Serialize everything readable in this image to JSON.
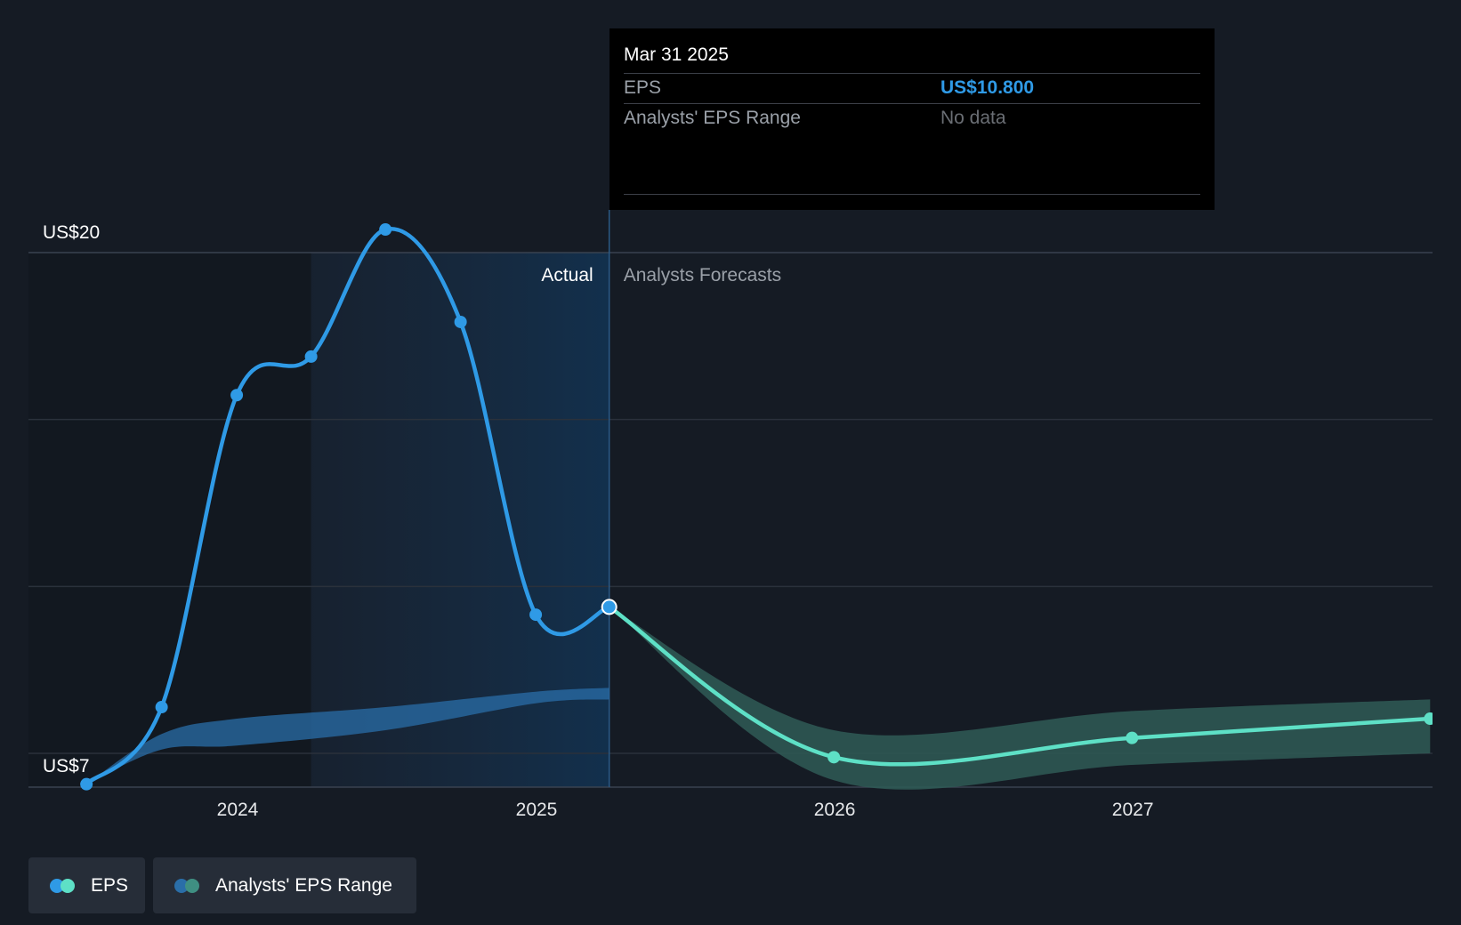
{
  "chart_data": {
    "type": "line",
    "y_axis_labels": [
      "US$20",
      "US$7"
    ],
    "y_range": [
      7,
      20
    ],
    "x_ticks": [
      "2024",
      "2025",
      "2026",
      "2027"
    ],
    "section_labels": {
      "actual": "Actual",
      "forecast": "Analysts Forecasts"
    },
    "series": [
      {
        "name": "EPS",
        "segment": "actual",
        "color": "#2f9ae6",
        "points": [
          [
            "2023-06-30",
            6.2
          ],
          [
            "2023-09-30",
            8.2
          ],
          [
            "2023-12-31",
            16.3
          ],
          [
            "2024-03-31",
            17.3
          ],
          [
            "2024-06-30",
            20.6
          ],
          [
            "2024-09-30",
            18.2
          ],
          [
            "2024-12-31",
            10.6
          ],
          [
            "2025-03-31",
            10.8
          ]
        ]
      },
      {
        "name": "EPS",
        "segment": "forecast",
        "color": "#5ee0c6",
        "points": [
          [
            "2025-03-31",
            10.8
          ],
          [
            "2025-12-31",
            6.9
          ],
          [
            "2026-12-31",
            7.4
          ],
          [
            "2027-12-31",
            7.9
          ]
        ]
      },
      {
        "name": "Analysts' EPS Range",
        "segment": "actual",
        "color": "#2a6ea8",
        "low": [
          [
            "2023-06-30",
            6.2
          ],
          [
            "2023-09-30",
            7.1
          ],
          [
            "2023-12-31",
            7.2
          ],
          [
            "2024-06-30",
            7.6
          ],
          [
            "2024-12-31",
            8.3
          ],
          [
            "2025-03-31",
            8.4
          ]
        ],
        "high": [
          [
            "2023-06-30",
            6.2
          ],
          [
            "2023-09-30",
            7.5
          ],
          [
            "2023-12-31",
            7.9
          ],
          [
            "2024-06-30",
            8.2
          ],
          [
            "2024-12-31",
            8.6
          ],
          [
            "2025-03-31",
            8.7
          ]
        ]
      },
      {
        "name": "Analysts' EPS Range",
        "segment": "forecast",
        "color": "#2f5a56",
        "low": [
          [
            "2025-03-31",
            10.8
          ],
          [
            "2025-12-31",
            6.3
          ],
          [
            "2026-12-31",
            6.7
          ],
          [
            "2027-12-31",
            7.0
          ]
        ],
        "high": [
          [
            "2025-03-31",
            10.8
          ],
          [
            "2025-12-31",
            7.6
          ],
          [
            "2026-12-31",
            8.1
          ],
          [
            "2027-12-31",
            8.4
          ]
        ]
      }
    ],
    "grid": true
  },
  "tooltip": {
    "date": "Mar 31 2025",
    "rows": [
      {
        "label": "EPS",
        "value": "US$10.800"
      },
      {
        "label": "Analysts' EPS Range",
        "value": "No data"
      }
    ]
  },
  "legend": [
    {
      "label": "EPS",
      "colors": [
        "#2f9ae6",
        "#5ee0c6"
      ]
    },
    {
      "label": "Analysts' EPS Range",
      "colors": [
        "#2a6ea8",
        "#3f8f82"
      ]
    }
  ]
}
